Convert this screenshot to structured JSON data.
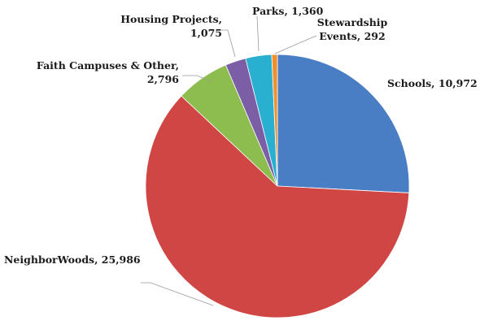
{
  "chart_data": {
    "type": "pie",
    "title": "",
    "slices": [
      {
        "label": "Schools",
        "value": 10972,
        "value_text": "10,972",
        "color": "#4a7ec4"
      },
      {
        "label": "NeighborWoods",
        "value": 25986,
        "value_text": "25,986",
        "color": "#cf4644"
      },
      {
        "label": "Faith Campuses & Other",
        "value": 2796,
        "value_text": "2,796",
        "color": "#8cbd4e"
      },
      {
        "label": "Housing Projects",
        "value": 1075,
        "value_text": "1,075",
        "color": "#7c5ea6"
      },
      {
        "label": "Parks",
        "value": 1360,
        "value_text": "1,360",
        "color": "#29afd0"
      },
      {
        "label": "Stewardship Events",
        "value": 292,
        "value_text": "292",
        "color": "#f18f2b"
      }
    ],
    "labels": [
      {
        "lines": [
          "Schools, 10,972"
        ]
      },
      {
        "lines": [
          "NeighborWoods, 25,986"
        ]
      },
      {
        "lines": [
          "Faith Campuses & Other,",
          "2,796"
        ]
      },
      {
        "lines": [
          "Housing Projects,",
          "1,075"
        ]
      },
      {
        "lines": [
          "Parks, 1,360"
        ]
      },
      {
        "lines": [
          "Stewardship",
          "Events, 292"
        ]
      }
    ],
    "legend": "none",
    "start_angle": "12 o'clock",
    "direction": "clockwise"
  }
}
